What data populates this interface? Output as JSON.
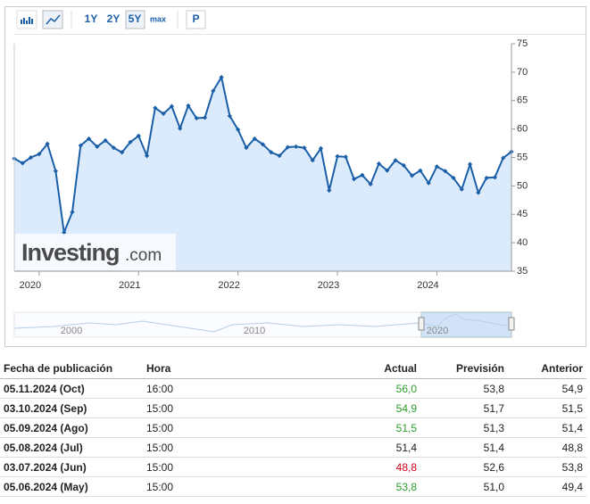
{
  "toolbar": {
    "ranges": [
      "1Y",
      "2Y",
      "5Y",
      "max"
    ],
    "toggle": "P"
  },
  "watermark": {
    "brand": "Investing",
    "suffix": ".com"
  },
  "chart_data": {
    "type": "line",
    "categories": [
      null,
      null,
      null,
      "2020",
      null,
      null,
      null,
      null,
      null,
      null,
      null,
      null,
      null,
      null,
      null,
      "2021",
      null,
      null,
      null,
      null,
      null,
      null,
      null,
      null,
      null,
      null,
      null,
      "2022",
      null,
      null,
      null,
      null,
      null,
      null,
      null,
      null,
      null,
      null,
      null,
      "2023",
      null,
      null,
      null,
      null,
      null,
      null,
      null,
      null,
      null,
      null,
      null,
      "2024",
      null,
      null,
      null,
      null,
      null,
      null,
      null,
      null,
      null
    ],
    "values": [
      54.8,
      54.0,
      55.0,
      55.6,
      57.4,
      52.6,
      41.8,
      45.4,
      57.1,
      58.3,
      56.9,
      58.0,
      56.7,
      55.9,
      57.7,
      58.8,
      55.3,
      63.7,
      62.7,
      64.0,
      60.1,
      64.1,
      61.9,
      62.0,
      66.7,
      69.1,
      62.3,
      59.9,
      56.7,
      58.3,
      57.3,
      55.9,
      55.3,
      56.8,
      56.9,
      56.7,
      54.5,
      56.6,
      49.2,
      55.2,
      55.1,
      51.2,
      51.9,
      50.3,
      53.9,
      52.7,
      54.5,
      53.6,
      51.8,
      52.7,
      50.5,
      53.4,
      52.6,
      51.4,
      49.4,
      53.8,
      48.8,
      51.4,
      51.5,
      54.9,
      56.0
    ],
    "color": "#1a5fa8",
    "area_color": "#dcebfb",
    "ylim": [
      35,
      75
    ],
    "yticks": [
      35,
      40,
      45,
      50,
      55,
      60,
      65,
      70,
      75
    ],
    "grid": false
  },
  "navigator": {
    "labels": [
      "2000",
      "2010",
      "2020"
    ]
  },
  "table": {
    "headers": [
      "Fecha de publicación",
      "Hora",
      "Actual",
      "Previsión",
      "Anterior"
    ],
    "rows": [
      {
        "date": "05.11.2024 (Oct)",
        "time": "16:00",
        "actual": "56,0",
        "forecast": "53,8",
        "previous": "54,9",
        "actual_color": "#2a9d2a"
      },
      {
        "date": "03.10.2024 (Sep)",
        "time": "15:00",
        "actual": "54,9",
        "forecast": "51,7",
        "previous": "51,5",
        "actual_color": "#2a9d2a"
      },
      {
        "date": "05.09.2024 (Ago)",
        "time": "15:00",
        "actual": "51,5",
        "forecast": "51,3",
        "previous": "51,4",
        "actual_color": "#2a9d2a"
      },
      {
        "date": "05.08.2024 (Jul)",
        "time": "15:00",
        "actual": "51,4",
        "forecast": "51,4",
        "previous": "48,8",
        "actual_color": "#222222"
      },
      {
        "date": "03.07.2024 (Jun)",
        "time": "15:00",
        "actual": "48,8",
        "forecast": "52,6",
        "previous": "53,8",
        "actual_color": "#d0021b"
      },
      {
        "date": "05.06.2024 (May)",
        "time": "15:00",
        "actual": "53,8",
        "forecast": "51,0",
        "previous": "49,4",
        "actual_color": "#2a9d2a"
      }
    ]
  }
}
